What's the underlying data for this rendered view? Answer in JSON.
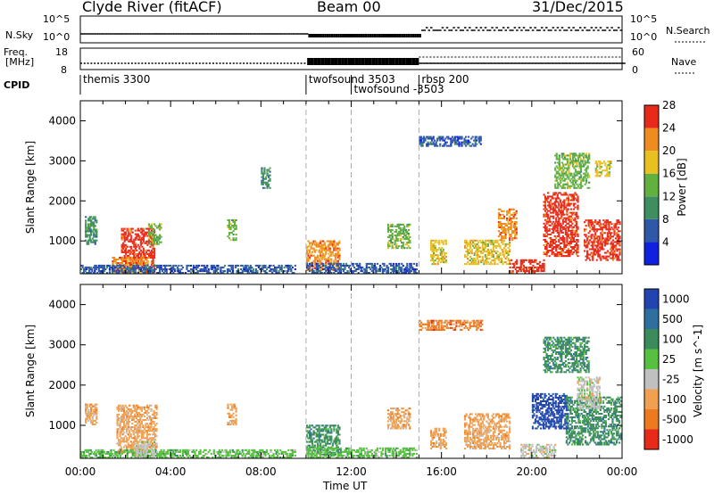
{
  "header": {
    "title": "Clyde River (fitACF)",
    "beam": "Beam 00",
    "date": "31/Dec/2015"
  },
  "strip": {
    "nsky_label": "N.Sky",
    "nsky_ticks": [
      "10^5",
      "10^0"
    ],
    "nsearch_label": "N.Search",
    "nsearch_ticks": [
      "10^5",
      "10^0"
    ],
    "freq_label": "Freq.",
    "freq_unit": "[MHz]",
    "freq_ticks": [
      "18",
      "8"
    ],
    "nave_label": "Nave",
    "nave_ticks": [
      "60",
      "0"
    ],
    "cpid_label": "CPID",
    "cpid_entries": [
      {
        "name": "themis 3300",
        "start": 0
      },
      {
        "name": "twofsound 3503",
        "start": 10
      },
      {
        "name": "twofsound -3503",
        "start": 12
      },
      {
        "name": "rbsp 200",
        "start": 15
      }
    ]
  },
  "chart_data": [
    {
      "type": "heatmap",
      "panel": "power",
      "ylabel": "Slant Range [km]",
      "xlabel": "Time UT",
      "x_ticks": [
        "00:00",
        "04:00",
        "08:00",
        "12:00",
        "16:00",
        "20:00",
        "00:00"
      ],
      "xlim_hours": [
        0,
        24
      ],
      "ylim_km": [
        180,
        4500
      ],
      "y_ticks": [
        1000,
        2000,
        3000,
        4000
      ],
      "colorbar_label": "Power [dB]",
      "colorbar_ticks": [
        "4",
        "8",
        "12",
        "16",
        "20",
        "24",
        "28"
      ],
      "colorbar_colors": [
        "#1020e0",
        "#2f58a8",
        "#3f8e60",
        "#62b040",
        "#e8c020",
        "#ee8c20",
        "#e82a1a"
      ],
      "cpid_change_hours": [
        10,
        12,
        15
      ],
      "scatter_regions": [
        {
          "t0": 0.2,
          "t1": 0.7,
          "r0": 900,
          "r1": 1600,
          "c": 2
        },
        {
          "t0": 1.8,
          "t1": 3.3,
          "r0": 200,
          "r1": 1300,
          "c": 6
        },
        {
          "t0": 1.4,
          "t1": 3.0,
          "r0": 200,
          "r1": 600,
          "c": 5
        },
        {
          "t0": 3.0,
          "t1": 3.6,
          "r0": 900,
          "r1": 1400,
          "c": 3
        },
        {
          "t0": 0.0,
          "t1": 9.5,
          "r0": 180,
          "r1": 380,
          "c": 1
        },
        {
          "t0": 6.5,
          "t1": 6.9,
          "r0": 1000,
          "r1": 1500,
          "c": 3
        },
        {
          "t0": 8.0,
          "t1": 8.4,
          "r0": 2300,
          "r1": 2800,
          "c": 2
        },
        {
          "t0": 10.0,
          "t1": 11.5,
          "r0": 250,
          "r1": 1000,
          "c": 5
        },
        {
          "t0": 10.0,
          "t1": 14.9,
          "r0": 180,
          "r1": 450,
          "c": 1
        },
        {
          "t0": 13.6,
          "t1": 14.6,
          "r0": 800,
          "r1": 1400,
          "c": 3
        },
        {
          "t0": 15.5,
          "t1": 16.2,
          "r0": 400,
          "r1": 1000,
          "c": 4
        },
        {
          "t0": 17.0,
          "t1": 19.0,
          "r0": 400,
          "r1": 1000,
          "c": 4
        },
        {
          "t0": 18.5,
          "t1": 19.3,
          "r0": 1000,
          "r1": 1800,
          "c": 5
        },
        {
          "t0": 19.0,
          "t1": 20.5,
          "r0": 180,
          "r1": 500,
          "c": 6
        },
        {
          "t0": 20.5,
          "t1": 22.0,
          "r0": 600,
          "r1": 2200,
          "c": 6
        },
        {
          "t0": 21.0,
          "t1": 22.5,
          "r0": 2300,
          "r1": 3200,
          "c": 3
        },
        {
          "t0": 22.3,
          "t1": 23.9,
          "r0": 500,
          "r1": 1500,
          "c": 6
        },
        {
          "t0": 22.8,
          "t1": 23.5,
          "r0": 2600,
          "r1": 3000,
          "c": 4
        },
        {
          "t0": 15.0,
          "t1": 17.8,
          "r0": 3350,
          "r1": 3600,
          "c": 1
        }
      ]
    },
    {
      "type": "heatmap",
      "panel": "velocity",
      "ylabel": "Slant Range [km]",
      "xlabel": "Time UT",
      "x_ticks": [
        "00:00",
        "04:00",
        "08:00",
        "12:00",
        "16:00",
        "20:00",
        "00:00"
      ],
      "xlim_hours": [
        0,
        24
      ],
      "ylim_km": [
        180,
        4500
      ],
      "y_ticks": [
        1000,
        2000,
        3000,
        4000
      ],
      "colorbar_label": "Velocity [m s^-1]",
      "colorbar_ticks": [
        "1000",
        "500",
        "100",
        "25",
        "-25",
        "-100",
        "-500",
        "-1000"
      ],
      "colorbar_colors": [
        "#2244b0",
        "#2f6fa0",
        "#3a8c5c",
        "#58c040",
        "#c0c0c0",
        "#f0a050",
        "#ee7a20",
        "#e82a1a"
      ],
      "cpid_change_hours": [
        10,
        12,
        15
      ],
      "scatter_regions": [
        {
          "t0": 0.2,
          "t1": 0.7,
          "r0": 1000,
          "r1": 1500,
          "c": 5
        },
        {
          "t0": 1.6,
          "t1": 3.4,
          "r0": 300,
          "r1": 1500,
          "c": 5
        },
        {
          "t0": 0.0,
          "t1": 9.5,
          "r0": 180,
          "r1": 380,
          "c": 3
        },
        {
          "t0": 2.4,
          "t1": 3.3,
          "r0": 200,
          "r1": 600,
          "c": 4
        },
        {
          "t0": 6.5,
          "t1": 6.9,
          "r0": 1000,
          "r1": 1500,
          "c": 5
        },
        {
          "t0": 10.0,
          "t1": 11.5,
          "r0": 250,
          "r1": 1000,
          "c": 2
        },
        {
          "t0": 10.0,
          "t1": 14.9,
          "r0": 180,
          "r1": 450,
          "c": 3
        },
        {
          "t0": 13.6,
          "t1": 14.6,
          "r0": 900,
          "r1": 1400,
          "c": 5
        },
        {
          "t0": 15.5,
          "t1": 16.2,
          "r0": 400,
          "r1": 900,
          "c": 5
        },
        {
          "t0": 17.0,
          "t1": 19.0,
          "r0": 400,
          "r1": 1300,
          "c": 5
        },
        {
          "t0": 20.0,
          "t1": 21.6,
          "r0": 900,
          "r1": 1800,
          "c": 0
        },
        {
          "t0": 20.5,
          "t1": 22.5,
          "r0": 2300,
          "r1": 3200,
          "c": 2
        },
        {
          "t0": 21.5,
          "t1": 23.9,
          "r0": 500,
          "r1": 1700,
          "c": 2
        },
        {
          "t0": 19.5,
          "t1": 21.0,
          "r0": 180,
          "r1": 500,
          "c": 4
        },
        {
          "t0": 22.0,
          "t1": 23.0,
          "r0": 1400,
          "r1": 2200,
          "c": 4
        },
        {
          "t0": 15.0,
          "t1": 17.8,
          "r0": 3350,
          "r1": 3600,
          "c": 6
        }
      ]
    }
  ]
}
